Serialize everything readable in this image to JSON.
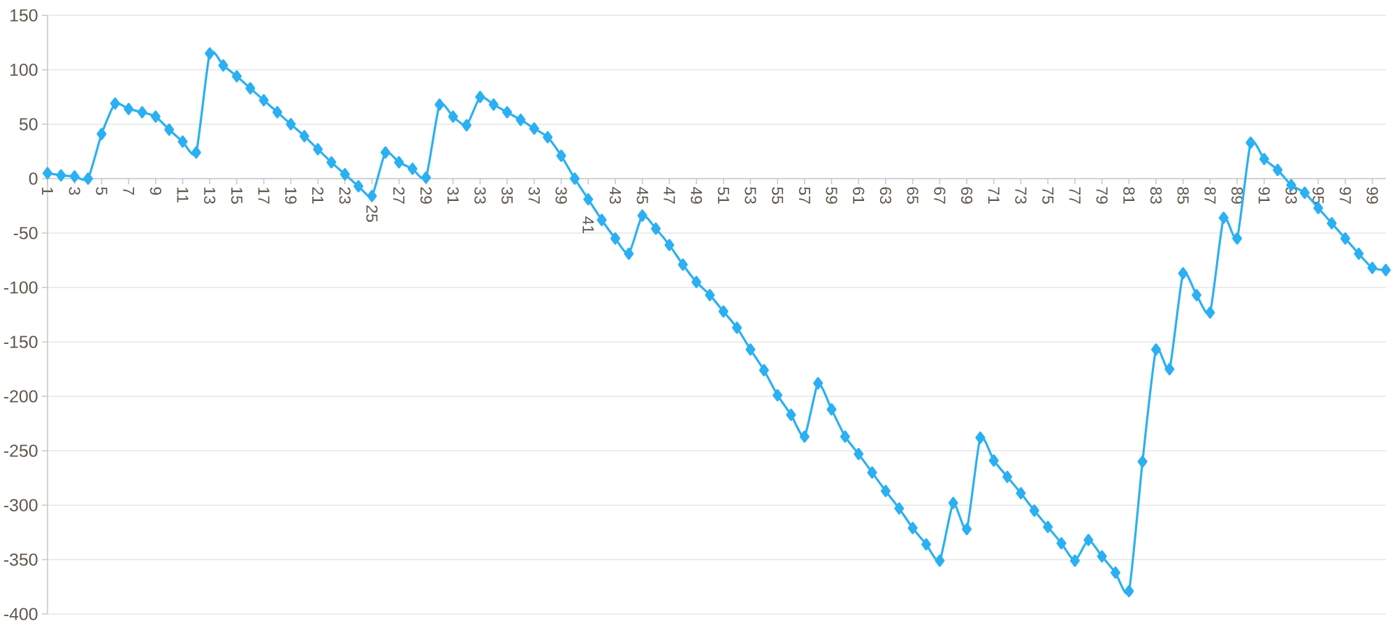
{
  "chart_data": {
    "type": "line",
    "categories": [
      "1",
      null,
      "3",
      null,
      "5",
      null,
      "7",
      null,
      "9",
      null,
      "11",
      null,
      "13",
      null,
      "15",
      null,
      "17",
      null,
      "19",
      null,
      "21",
      null,
      "23",
      null,
      "25",
      null,
      "27",
      null,
      "29",
      null,
      "31",
      null,
      "33",
      null,
      "35",
      null,
      "37",
      null,
      "39",
      null,
      "41",
      null,
      "43",
      null,
      "45",
      null,
      "47",
      null,
      "49",
      null,
      "51",
      null,
      "53",
      null,
      "55",
      null,
      "57",
      null,
      "59",
      null,
      "61",
      null,
      "63",
      null,
      "65",
      null,
      "67",
      null,
      "69",
      null,
      "71",
      null,
      "73",
      null,
      "75",
      null,
      "77",
      null,
      "79",
      null,
      "81",
      null,
      "83",
      null,
      "85",
      null,
      "87",
      null,
      "89",
      null,
      "91",
      null,
      "93",
      null,
      "95",
      null,
      "97",
      null,
      "99",
      null
    ],
    "series": [
      {
        "color": "#2bb0f2",
        "values": [
          5,
          3,
          2,
          0,
          41,
          69,
          64,
          61,
          57,
          45,
          34,
          24,
          115,
          104,
          94,
          83,
          72,
          61,
          50,
          39,
          27,
          15,
          4,
          -7,
          -16,
          24,
          15,
          9,
          1,
          68,
          57,
          49,
          75,
          68,
          61,
          54,
          46,
          38,
          21,
          0,
          -19,
          -38,
          -55,
          -69,
          -34,
          -46,
          -61,
          -79,
          -95,
          -107,
          -122,
          -137,
          -157,
          -176,
          -199,
          -217,
          -237,
          -188,
          -212,
          -237,
          -253,
          -270,
          -287,
          -303,
          -321,
          -336,
          -351,
          -298,
          -322,
          -238,
          -259,
          -274,
          -289,
          -305,
          -320,
          -335,
          -351,
          -332,
          -347,
          -362,
          -379,
          -260,
          -157,
          -175,
          -87,
          -107,
          -123,
          -36,
          -55,
          33,
          18,
          8,
          -6,
          -13,
          -27,
          -41,
          -55,
          -69,
          -82,
          -84
        ]
      }
    ],
    "ylim": [
      -400,
      150
    ],
    "yticks": [
      -400,
      -350,
      -300,
      -250,
      -200,
      -150,
      -100,
      -50,
      0,
      50,
      100,
      150
    ],
    "grid": "y",
    "marker": "diamond",
    "line_style": "solid"
  }
}
